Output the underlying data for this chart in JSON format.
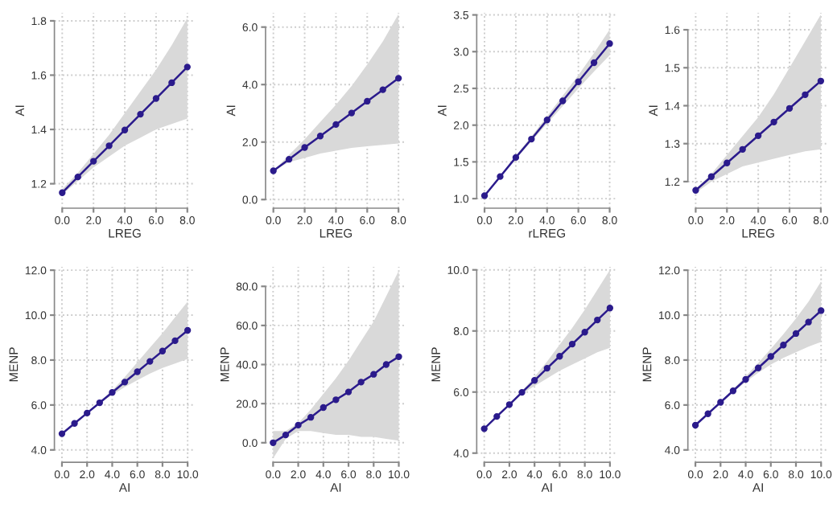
{
  "chart_data": [
    {
      "type": "line",
      "xlabel": "LREG",
      "ylabel": "AI",
      "x": [
        0,
        1,
        2,
        3,
        4,
        5,
        6,
        7,
        8
      ],
      "xlim": [
        -0.5,
        8.5
      ],
      "xticks": [
        {
          "value": 0,
          "label": "0.0"
        },
        {
          "value": 2,
          "label": "2.0"
        },
        {
          "value": 4,
          "label": "4.0"
        },
        {
          "value": 6,
          "label": "6.0"
        },
        {
          "value": 8,
          "label": "8.0"
        }
      ],
      "ylim": [
        1.11,
        1.83
      ],
      "yticks": [
        1.2,
        1.4,
        1.6,
        1.8
      ],
      "grid": true,
      "marker": "circle",
      "series": [
        {
          "color": "#2b1b8c",
          "values": [
            1.167,
            1.225,
            1.283,
            1.34,
            1.398,
            1.456,
            1.514,
            1.572,
            1.63
          ],
          "lower": [
            1.16,
            1.21,
            1.26,
            1.3,
            1.34,
            1.37,
            1.4,
            1.42,
            1.44
          ],
          "upper": [
            1.18,
            1.24,
            1.31,
            1.38,
            1.46,
            1.54,
            1.62,
            1.71,
            1.81
          ]
        }
      ]
    },
    {
      "type": "line",
      "xlabel": "LREG",
      "ylabel": "AI",
      "x": [
        0,
        1,
        2,
        3,
        4,
        5,
        6,
        7,
        8
      ],
      "xlim": [
        -0.5,
        8.5
      ],
      "xticks": [
        {
          "value": 0,
          "label": "0.0"
        },
        {
          "value": 2,
          "label": "2.0"
        },
        {
          "value": 4,
          "label": "4.0"
        },
        {
          "value": 6,
          "label": "6.0"
        },
        {
          "value": 8,
          "label": "8.0"
        }
      ],
      "ylim": [
        -0.3,
        6.5
      ],
      "yticks": [
        {
          "value": 0,
          "label": "0.0"
        },
        {
          "value": 2,
          "label": "2.0"
        },
        {
          "value": 4,
          "label": "4.0"
        },
        {
          "value": 6,
          "label": "6.0"
        }
      ],
      "grid": true,
      "marker": "circle",
      "series": [
        {
          "color": "#2b1b8c",
          "values": [
            1.0,
            1.4,
            1.81,
            2.21,
            2.61,
            3.01,
            3.42,
            3.82,
            4.22
          ],
          "lower": [
            1.0,
            1.3,
            1.45,
            1.6,
            1.7,
            1.8,
            1.85,
            1.9,
            1.95
          ],
          "upper": [
            1.0,
            1.55,
            2.1,
            2.7,
            3.3,
            3.95,
            4.7,
            5.5,
            6.45
          ]
        }
      ]
    },
    {
      "type": "line",
      "xlabel": "rLREG",
      "ylabel": "AI",
      "x": [
        0,
        1,
        2,
        3,
        4,
        5,
        6,
        7,
        8
      ],
      "xlim": [
        -0.5,
        8.5
      ],
      "xticks": [
        {
          "value": 0,
          "label": "0.0"
        },
        {
          "value": 2,
          "label": "2.0"
        },
        {
          "value": 4,
          "label": "4.0"
        },
        {
          "value": 6,
          "label": "6.0"
        },
        {
          "value": 8,
          "label": "8.0"
        }
      ],
      "ylim": [
        0.87,
        3.53
      ],
      "yticks": [
        {
          "value": 1,
          "label": "1.0"
        },
        1.5,
        {
          "value": 2,
          "label": "2.0"
        },
        2.5,
        {
          "value": 3,
          "label": "3.0"
        },
        3.5
      ],
      "grid": true,
      "marker": "circle",
      "series": [
        {
          "color": "#2b1b8c",
          "values": [
            1.04,
            1.3,
            1.56,
            1.81,
            2.07,
            2.33,
            2.59,
            2.85,
            3.11
          ],
          "lower": [
            1.04,
            1.29,
            1.54,
            1.78,
            2.02,
            2.26,
            2.5,
            2.73,
            2.95
          ],
          "upper": [
            1.04,
            1.31,
            1.58,
            1.85,
            2.12,
            2.4,
            2.68,
            2.98,
            3.3
          ]
        }
      ]
    },
    {
      "type": "line",
      "xlabel": "LREG",
      "ylabel": "AI",
      "x": [
        0,
        1,
        2,
        3,
        4,
        5,
        6,
        7,
        8
      ],
      "xlim": [
        -0.5,
        8.5
      ],
      "xticks": [
        {
          "value": 0,
          "label": "0.0"
        },
        {
          "value": 2,
          "label": "2.0"
        },
        {
          "value": 4,
          "label": "4.0"
        },
        {
          "value": 6,
          "label": "6.0"
        },
        {
          "value": 8,
          "label": "8.0"
        }
      ],
      "ylim": [
        1.13,
        1.645
      ],
      "yticks": [
        1.2,
        1.3,
        1.4,
        1.5,
        1.6
      ],
      "grid": true,
      "marker": "circle",
      "series": [
        {
          "color": "#2b1b8c",
          "values": [
            1.177,
            1.213,
            1.249,
            1.285,
            1.321,
            1.357,
            1.393,
            1.429,
            1.465
          ],
          "lower": [
            1.17,
            1.2,
            1.22,
            1.24,
            1.25,
            1.26,
            1.27,
            1.28,
            1.285
          ],
          "upper": [
            1.18,
            1.22,
            1.27,
            1.32,
            1.37,
            1.43,
            1.5,
            1.57,
            1.64
          ]
        }
      ]
    },
    {
      "type": "line",
      "xlabel": "AI",
      "ylabel": "MENP",
      "x": [
        0,
        1,
        2,
        3,
        4,
        5,
        6,
        7,
        8,
        9,
        10
      ],
      "xlim": [
        -0.6,
        10.6
      ],
      "xticks": [
        {
          "value": 0,
          "label": "0.0"
        },
        {
          "value": 2,
          "label": "2.0"
        },
        {
          "value": 4,
          "label": "4.0"
        },
        {
          "value": 6,
          "label": "6.0"
        },
        {
          "value": 8,
          "label": "8.0"
        },
        {
          "value": 10,
          "label": "10.0"
        }
      ],
      "ylim": [
        3.45,
        12.15
      ],
      "yticks": [
        {
          "value": 4,
          "label": "4.0"
        },
        {
          "value": 6,
          "label": "6.0"
        },
        {
          "value": 8,
          "label": "8.0"
        },
        {
          "value": 10,
          "label": "10.0"
        },
        {
          "value": 12,
          "label": "12.0"
        }
      ],
      "grid": true,
      "marker": "circle",
      "series": [
        {
          "color": "#2b1b8c",
          "values": [
            4.72,
            5.18,
            5.64,
            6.1,
            6.56,
            7.02,
            7.48,
            7.94,
            8.4,
            8.86,
            9.32
          ],
          "lower": [
            4.72,
            5.18,
            5.64,
            6.08,
            6.45,
            6.8,
            7.1,
            7.4,
            7.65,
            7.85,
            8.05
          ],
          "upper": [
            4.72,
            5.18,
            5.64,
            6.12,
            6.65,
            7.25,
            7.9,
            8.55,
            9.2,
            9.9,
            10.6
          ]
        }
      ]
    },
    {
      "type": "line",
      "xlabel": "AI",
      "ylabel": "MENP",
      "x": [
        0,
        1,
        2,
        3,
        4,
        5,
        6,
        7,
        8,
        9,
        10
      ],
      "xlim": [
        -0.6,
        10.6
      ],
      "xticks": [
        {
          "value": 0,
          "label": "0.0"
        },
        {
          "value": 2,
          "label": "2.0"
        },
        {
          "value": 4,
          "label": "4.0"
        },
        {
          "value": 6,
          "label": "6.0"
        },
        {
          "value": 8,
          "label": "8.0"
        },
        {
          "value": 10,
          "label": "10.0"
        }
      ],
      "ylim": [
        -10,
        90
      ],
      "yticks": [
        {
          "value": 0,
          "label": "0.0"
        },
        {
          "value": 20,
          "label": "20.0"
        },
        {
          "value": 40,
          "label": "40.0"
        },
        {
          "value": 60,
          "label": "60.0"
        },
        {
          "value": 80,
          "label": "80.0"
        }
      ],
      "grid": true,
      "marker": "circle",
      "series": [
        {
          "color": "#2b1b8c",
          "values": [
            0,
            4,
            9,
            13,
            18,
            22,
            26,
            31,
            35,
            40,
            44
          ],
          "lower": [
            -8,
            2,
            6,
            6,
            5,
            4,
            4,
            3,
            3,
            2,
            1
          ],
          "upper": [
            6,
            6,
            10,
            17,
            25,
            33,
            42,
            52,
            62,
            75,
            88
          ]
        }
      ]
    },
    {
      "type": "line",
      "xlabel": "AI",
      "ylabel": "MENP",
      "x": [
        0,
        1,
        2,
        3,
        4,
        5,
        6,
        7,
        8,
        9,
        10
      ],
      "xlim": [
        -0.6,
        10.6
      ],
      "xticks": [
        {
          "value": 0,
          "label": "0.0"
        },
        {
          "value": 2,
          "label": "2.0"
        },
        {
          "value": 4,
          "label": "4.0"
        },
        {
          "value": 6,
          "label": "6.0"
        },
        {
          "value": 8,
          "label": "8.0"
        },
        {
          "value": 10,
          "label": "10.0"
        }
      ],
      "ylim": [
        3.7,
        10.1
      ],
      "yticks": [
        {
          "value": 4,
          "label": "4.0"
        },
        {
          "value": 6,
          "label": "6.0"
        },
        {
          "value": 8,
          "label": "8.0"
        },
        {
          "value": 10,
          "label": "10.0"
        }
      ],
      "grid": true,
      "marker": "circle",
      "series": [
        {
          "color": "#2b1b8c",
          "values": [
            4.8,
            5.2,
            5.59,
            5.99,
            6.38,
            6.78,
            7.17,
            7.57,
            7.96,
            8.36,
            8.75
          ],
          "lower": [
            4.8,
            5.2,
            5.58,
            5.95,
            6.2,
            6.45,
            6.7,
            6.9,
            7.1,
            7.3,
            7.45
          ],
          "upper": [
            4.8,
            5.2,
            5.6,
            6.03,
            6.5,
            7.0,
            7.55,
            8.1,
            8.7,
            9.35,
            10.0
          ]
        }
      ]
    },
    {
      "type": "line",
      "xlabel": "AI",
      "ylabel": "MENP",
      "x": [
        0,
        1,
        2,
        3,
        4,
        5,
        6,
        7,
        8,
        9,
        10
      ],
      "xlim": [
        -0.6,
        10.6
      ],
      "xticks": [
        {
          "value": 0,
          "label": "0.0"
        },
        {
          "value": 2,
          "label": "2.0"
        },
        {
          "value": 4,
          "label": "4.0"
        },
        {
          "value": 6,
          "label": "6.0"
        },
        {
          "value": 8,
          "label": "8.0"
        },
        {
          "value": 10,
          "label": "10.0"
        }
      ],
      "ylim": [
        3.45,
        12.15
      ],
      "yticks": [
        {
          "value": 4,
          "label": "4.0"
        },
        {
          "value": 6,
          "label": "6.0"
        },
        {
          "value": 8,
          "label": "8.0"
        },
        {
          "value": 10,
          "label": "10.0"
        },
        {
          "value": 12,
          "label": "12.0"
        }
      ],
      "grid": true,
      "marker": "circle",
      "series": [
        {
          "color": "#2b1b8c",
          "values": [
            5.1,
            5.61,
            6.12,
            6.63,
            7.14,
            7.65,
            8.16,
            8.67,
            9.18,
            9.69,
            10.2
          ],
          "lower": [
            5.1,
            5.6,
            6.1,
            6.58,
            7.02,
            7.43,
            7.8,
            8.1,
            8.35,
            8.6,
            8.8
          ],
          "upper": [
            5.1,
            5.62,
            6.15,
            6.7,
            7.27,
            7.87,
            8.5,
            9.15,
            9.85,
            10.6,
            11.5
          ]
        }
      ]
    }
  ]
}
